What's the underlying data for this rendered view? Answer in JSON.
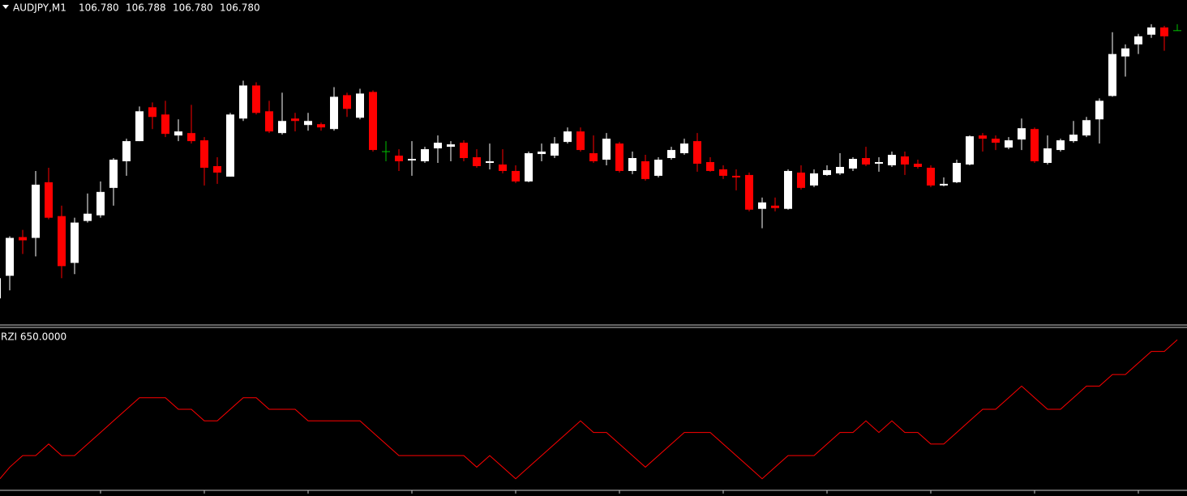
{
  "chart_data": [
    {
      "type": "candlestick",
      "title": "AUDJPY,M1",
      "ohlc_labels": [
        "106.780",
        "106.788",
        "106.780",
        "106.780"
      ],
      "open": [
        106.448,
        106.476,
        106.524,
        106.523,
        106.592,
        106.55,
        106.492,
        106.544,
        106.551,
        106.585,
        106.618,
        106.643,
        106.685,
        106.676,
        106.65,
        106.653,
        106.644,
        106.612,
        106.599,
        106.671,
        106.712,
        106.68,
        106.653,
        106.671,
        106.663,
        106.664,
        106.658,
        106.7,
        106.672,
        106.704,
        106.63,
        106.625,
        106.619,
        106.618,
        106.634,
        106.636,
        106.641,
        106.623,
        106.616,
        106.614,
        106.606,
        106.593,
        106.627,
        106.625,
        106.642,
        106.655,
        106.628,
        106.62,
        106.64,
        106.606,
        106.618,
        106.6,
        106.622,
        106.628,
        106.643,
        106.617,
        106.608,
        106.6,
        106.601,
        106.559,
        106.563,
        106.559,
        106.604,
        106.588,
        106.601,
        106.603,
        106.609,
        106.622,
        106.615,
        106.613,
        106.624,
        106.615,
        106.61,
        106.588,
        106.592,
        106.614,
        106.65,
        106.646,
        106.635,
        106.645,
        106.658,
        106.616,
        106.632,
        106.643,
        106.65,
        106.67,
        106.699,
        106.748,
        106.763,
        106.775,
        106.784,
        106.78
      ],
      "high": [
        106.478,
        106.525,
        106.533,
        106.606,
        106.61,
        106.563,
        106.548,
        106.578,
        106.593,
        106.622,
        106.646,
        106.686,
        106.691,
        106.693,
        106.67,
        106.688,
        106.648,
        106.623,
        106.678,
        106.718,
        106.716,
        106.693,
        106.703,
        106.678,
        106.678,
        106.666,
        106.71,
        106.703,
        106.708,
        106.706,
        106.643,
        106.633,
        106.643,
        106.636,
        106.65,
        106.643,
        106.644,
        106.633,
        106.64,
        106.633,
        106.613,
        106.63,
        106.64,
        106.648,
        106.66,
        106.66,
        106.65,
        106.653,
        106.642,
        106.63,
        106.626,
        106.623,
        106.636,
        106.646,
        106.653,
        106.623,
        106.613,
        106.608,
        106.604,
        106.573,
        106.573,
        106.608,
        106.613,
        106.608,
        106.613,
        106.628,
        106.623,
        106.636,
        106.623,
        106.63,
        106.63,
        106.62,
        106.613,
        106.598,
        106.62,
        106.65,
        106.653,
        106.65,
        106.648,
        106.671,
        106.66,
        106.65,
        106.646,
        106.668,
        106.673,
        106.696,
        106.778,
        106.763,
        106.776,
        106.788,
        106.786,
        106.788
      ],
      "low": [
        106.446,
        106.458,
        106.503,
        106.5,
        106.546,
        106.473,
        106.478,
        106.542,
        106.548,
        106.563,
        106.6,
        106.643,
        106.658,
        106.648,
        106.643,
        106.64,
        106.588,
        106.59,
        106.599,
        106.668,
        106.676,
        106.653,
        106.651,
        106.655,
        106.656,
        106.656,
        106.656,
        106.673,
        106.67,
        106.63,
        106.618,
        106.606,
        106.6,
        106.616,
        106.616,
        106.618,
        106.618,
        106.61,
        106.608,
        106.603,
        106.591,
        106.592,
        106.618,
        106.622,
        106.64,
        106.63,
        106.616,
        106.613,
        106.604,
        106.602,
        106.594,
        106.598,
        106.62,
        106.626,
        106.605,
        106.605,
        106.596,
        106.582,
        106.556,
        106.535,
        106.556,
        106.558,
        106.583,
        106.586,
        106.6,
        106.601,
        106.606,
        106.612,
        106.605,
        106.611,
        106.601,
        106.609,
        106.586,
        106.587,
        106.591,
        106.613,
        106.63,
        106.632,
        106.633,
        106.632,
        106.616,
        106.614,
        106.63,
        106.641,
        106.648,
        106.64,
        106.698,
        106.723,
        106.751,
        106.771,
        106.755,
        106.78
      ],
      "close": [
        106.473,
        106.523,
        106.52,
        106.589,
        106.548,
        106.488,
        106.542,
        106.553,
        106.58,
        106.62,
        106.643,
        106.68,
        106.673,
        106.652,
        106.655,
        106.643,
        106.61,
        106.604,
        106.676,
        106.712,
        106.678,
        106.655,
        106.668,
        106.668,
        106.668,
        106.66,
        106.698,
        106.683,
        106.702,
        106.632,
        106.63,
        106.618,
        106.621,
        106.633,
        106.641,
        106.639,
        106.622,
        106.612,
        106.618,
        106.606,
        106.593,
        106.628,
        106.63,
        106.64,
        106.655,
        106.632,
        106.618,
        106.646,
        106.606,
        106.622,
        106.596,
        106.62,
        106.632,
        106.64,
        106.615,
        106.606,
        106.6,
        106.598,
        106.558,
        106.567,
        106.56,
        106.606,
        106.585,
        106.603,
        106.607,
        106.611,
        106.621,
        106.614,
        106.617,
        106.626,
        106.614,
        106.611,
        106.588,
        106.59,
        106.616,
        106.649,
        106.646,
        106.641,
        106.644,
        106.659,
        106.618,
        106.634,
        106.644,
        106.651,
        106.669,
        106.693,
        106.751,
        106.758,
        106.773,
        106.784,
        106.773,
        106.78
      ],
      "ylim": [
        106.418,
        106.818
      ],
      "colors": {
        "up": "#ffffff",
        "down": "#ff0000",
        "doji": "#00c000"
      }
    },
    {
      "type": "line",
      "title": "RZI 650.0000",
      "values": [
        50,
        100,
        150,
        150,
        200,
        150,
        150,
        200,
        250,
        300,
        350,
        400,
        400,
        400,
        350,
        350,
        300,
        300,
        350,
        400,
        400,
        350,
        350,
        350,
        300,
        300,
        300,
        300,
        300,
        250,
        200,
        150,
        150,
        150,
        150,
        150,
        150,
        100,
        150,
        100,
        50,
        100,
        150,
        200,
        250,
        300,
        250,
        250,
        200,
        150,
        100,
        150,
        200,
        250,
        250,
        250,
        200,
        150,
        100,
        50,
        100,
        150,
        150,
        150,
        200,
        250,
        250,
        300,
        250,
        300,
        250,
        250,
        200,
        200,
        250,
        300,
        350,
        350,
        400,
        450,
        400,
        350,
        350,
        400,
        450,
        450,
        500,
        500,
        550,
        600,
        600,
        650
      ],
      "color": "#ff0000",
      "ylim": [
        0,
        700
      ]
    }
  ]
}
